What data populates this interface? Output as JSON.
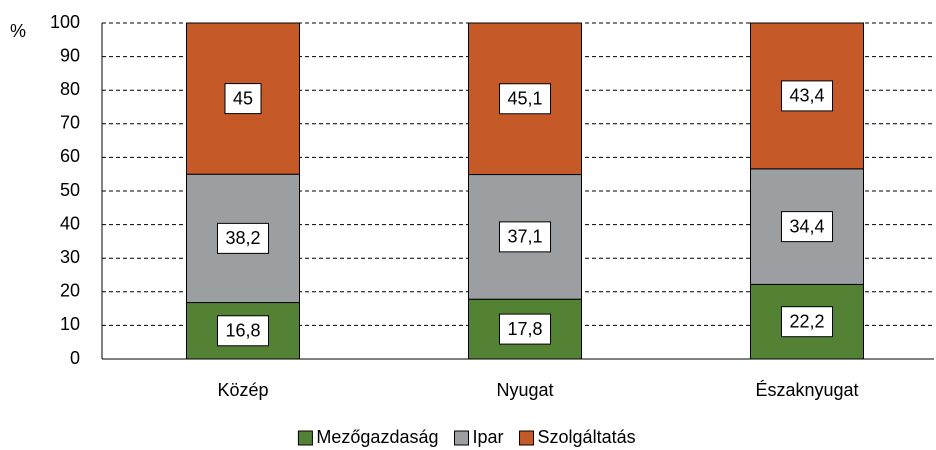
{
  "chart_data": {
    "type": "stacked_bar",
    "y_label": "%",
    "categories": [
      "Közép",
      "Nyugat",
      "Északnyugat"
    ],
    "series": [
      {
        "name": "Mezőgazdaság",
        "color": "#548235",
        "values": [
          16.8,
          17.8,
          22.2
        ],
        "value_labels": [
          "16,8",
          "17,8",
          "22,2"
        ]
      },
      {
        "name": "Ipar",
        "color": "#9c9fa2",
        "values": [
          38.2,
          37.1,
          34.4
        ],
        "value_labels": [
          "38,2",
          "37,1",
          "34,4"
        ]
      },
      {
        "name": "Szolgáltatás",
        "color": "#c55a28",
        "values": [
          45,
          45.1,
          43.4
        ],
        "value_labels": [
          "45",
          "45,1",
          "43,4"
        ]
      }
    ],
    "ylim": [
      0,
      100
    ],
    "yticks": [
      0,
      10,
      20,
      30,
      40,
      50,
      60,
      70,
      80,
      90,
      100
    ],
    "grid": true,
    "legend": "bottom"
  }
}
